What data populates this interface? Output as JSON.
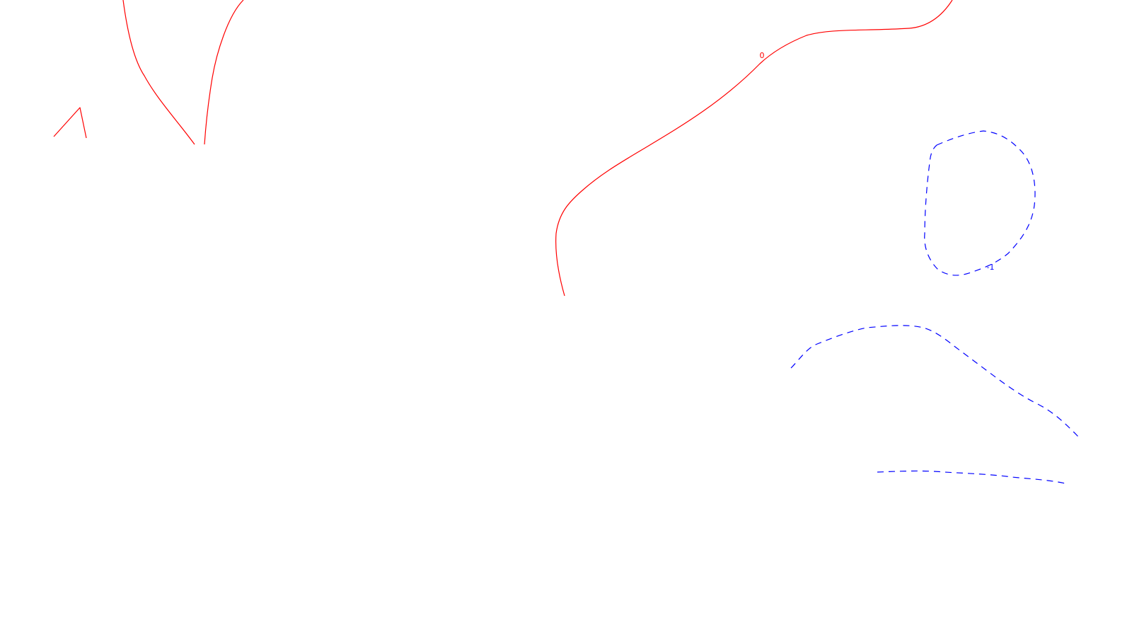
{
  "contours": {
    "positive_color": "#ff0000",
    "negative_color": "#0000ff",
    "level_zero_label": "0",
    "level_minus_one_label": "-1"
  }
}
